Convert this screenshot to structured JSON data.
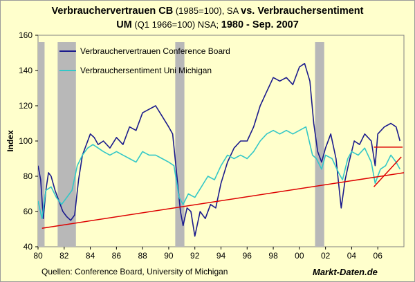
{
  "title": {
    "l1_bold_a": "Verbrauchervertrauen CB",
    "l1_norm": " (1985=100), SA ",
    "l1_bold_b": "vs. Verbrauchersentiment",
    "l2_bold_a": "UM",
    "l2_norm": " (Q1 1966=100) NSA; ",
    "l2_bold_b": "1980 - Sep. 2007"
  },
  "source": "Quellen: Conference Board, University of Michigan",
  "brand": "Markt-Daten.de",
  "colors": {
    "cb": "#1a1a8c",
    "um": "#33c7c7",
    "trend": "#dd0000",
    "recession": "#b8b8b8",
    "plot_bg": "#ffffcc"
  },
  "chart_data": {
    "type": "line",
    "title": "Verbrauchervertrauen CB (1985=100), SA vs. Verbrauchersentiment UM (Q1 1966=100) NSA; 1980 - Sep. 2007",
    "xlabel": "",
    "ylabel": "Index",
    "xlim": [
      1980,
      2008.0
    ],
    "ylim": [
      40,
      160
    ],
    "yticks": [
      40,
      60,
      80,
      100,
      120,
      140,
      160
    ],
    "xticks": [
      {
        "year": 1980,
        "label": "80"
      },
      {
        "year": 1982,
        "label": "82"
      },
      {
        "year": 1984,
        "label": "84"
      },
      {
        "year": 1986,
        "label": "86"
      },
      {
        "year": 1988,
        "label": "88"
      },
      {
        "year": 1990,
        "label": "90"
      },
      {
        "year": 1992,
        "label": "92"
      },
      {
        "year": 1994,
        "label": "94"
      },
      {
        "year": 1996,
        "label": "96"
      },
      {
        "year": 1998,
        "label": "98"
      },
      {
        "year": 2000,
        "label": "00"
      },
      {
        "year": 2002,
        "label": "02"
      },
      {
        "year": 2004,
        "label": "04"
      },
      {
        "year": 2006,
        "label": "06"
      }
    ],
    "recessions": [
      [
        1980.0,
        1980.5
      ],
      [
        1981.5,
        1982.9
      ],
      [
        1990.5,
        1991.2
      ],
      [
        2001.2,
        2001.9
      ]
    ],
    "series": [
      {
        "name": "Verbrauchervertrauen Conference Board",
        "x": [
          1980.0,
          1980.2,
          1980.4,
          1980.6,
          1980.8,
          1981.0,
          1981.3,
          1981.6,
          1981.9,
          1982.2,
          1982.5,
          1982.8,
          1983.1,
          1983.4,
          1983.7,
          1984.0,
          1984.3,
          1984.6,
          1985.0,
          1985.5,
          1986.0,
          1986.5,
          1987.0,
          1987.5,
          1988.0,
          1988.5,
          1989.0,
          1989.5,
          1990.0,
          1990.3,
          1990.6,
          1990.9,
          1991.1,
          1991.4,
          1991.7,
          1992.0,
          1992.4,
          1992.8,
          1993.2,
          1993.6,
          1994.0,
          1994.5,
          1995.0,
          1995.5,
          1996.0,
          1996.5,
          1997.0,
          1997.5,
          1998.0,
          1998.5,
          1999.0,
          1999.5,
          2000.0,
          2000.4,
          2000.8,
          2001.1,
          2001.4,
          2001.7,
          2002.0,
          2002.4,
          2002.8,
          2003.2,
          2003.5,
          2003.8,
          2004.2,
          2004.6,
          2005.0,
          2005.5,
          2005.8,
          2006.0,
          2006.5,
          2007.0,
          2007.4,
          2007.7
        ],
        "values": [
          86,
          78,
          56,
          72,
          82,
          80,
          72,
          66,
          60,
          57,
          55,
          58,
          78,
          92,
          98,
          104,
          102,
          98,
          100,
          96,
          102,
          98,
          108,
          106,
          116,
          118,
          120,
          114,
          108,
          104,
          82,
          60,
          52,
          62,
          60,
          46,
          60,
          56,
          64,
          62,
          76,
          88,
          96,
          100,
          100,
          108,
          120,
          128,
          136,
          134,
          136,
          132,
          142,
          144,
          134,
          110,
          94,
          88,
          96,
          104,
          90,
          62,
          78,
          88,
          100,
          98,
          104,
          100,
          86,
          104,
          108,
          110,
          108,
          100
        ]
      },
      {
        "name": "Verbrauchersentiment Uni Michigan",
        "x": [
          1980.0,
          1980.3,
          1980.6,
          1981.0,
          1981.4,
          1981.8,
          1982.2,
          1982.6,
          1983.0,
          1983.4,
          1983.8,
          1984.2,
          1984.6,
          1985.0,
          1985.5,
          1986.0,
          1986.5,
          1987.0,
          1987.5,
          1988.0,
          1988.5,
          1989.0,
          1989.5,
          1990.0,
          1990.4,
          1990.8,
          1991.1,
          1991.5,
          1992.0,
          1992.5,
          1993.0,
          1993.5,
          1994.0,
          1994.5,
          1995.0,
          1995.5,
          1996.0,
          1996.5,
          1997.0,
          1997.5,
          1998.0,
          1998.5,
          1999.0,
          1999.5,
          2000.0,
          2000.5,
          2001.0,
          2001.3,
          2001.7,
          2002.0,
          2002.5,
          2003.0,
          2003.3,
          2003.7,
          2004.0,
          2004.5,
          2005.0,
          2005.5,
          2005.8,
          2006.2,
          2006.6,
          2007.0,
          2007.4,
          2007.7
        ],
        "values": [
          66,
          56,
          72,
          74,
          68,
          64,
          68,
          72,
          86,
          92,
          96,
          98,
          96,
          94,
          92,
          94,
          92,
          90,
          88,
          94,
          92,
          92,
          90,
          88,
          86,
          68,
          64,
          70,
          68,
          74,
          80,
          78,
          86,
          92,
          90,
          92,
          90,
          94,
          100,
          104,
          106,
          104,
          106,
          104,
          106,
          108,
          92,
          90,
          84,
          92,
          90,
          82,
          78,
          90,
          94,
          92,
          96,
          88,
          76,
          84,
          86,
          92,
          88,
          84
        ]
      },
      {
        "name": "Trend",
        "x": [
          1980.3,
          2008.0
        ],
        "values": [
          50.5,
          82
        ]
      }
    ],
    "annotations": [
      {
        "type": "hline",
        "x": [
          2005.7,
          2007.9
        ],
        "y": 96.5
      },
      {
        "type": "segment",
        "x": [
          2005.7,
          2007.8
        ],
        "y": [
          74,
          91
        ]
      }
    ],
    "legend": "top-left"
  }
}
